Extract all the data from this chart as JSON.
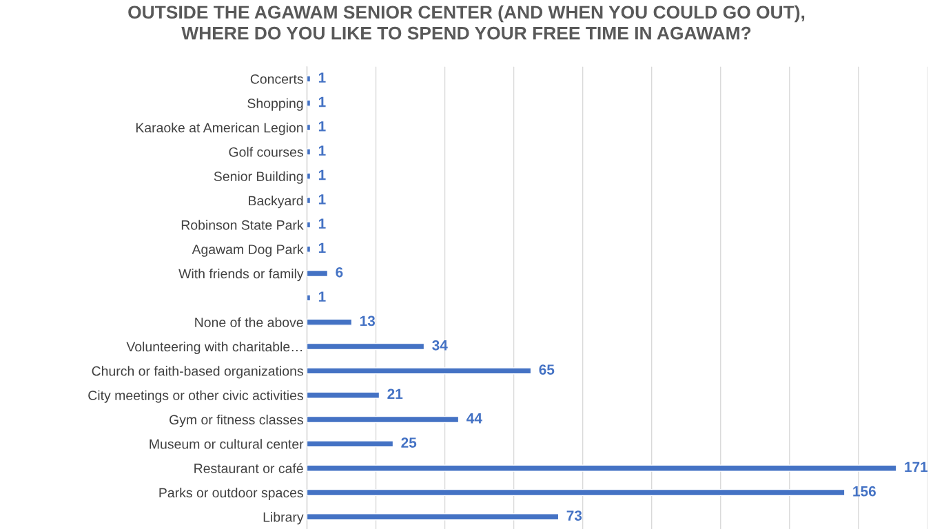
{
  "chart_data": {
    "type": "bar",
    "orientation": "horizontal",
    "title": "OUTSIDE THE AGAWAM SENIOR CENTER (AND WHEN YOU COULD GO OUT),\nWHERE DO YOU LIKE TO SPEND YOUR FREE TIME IN AGAWAM?",
    "categories": [
      "Concerts",
      "Shopping",
      "Karaoke at American Legion",
      "Golf courses",
      "Senior Building",
      "Backyard",
      "Robinson State Park",
      "Agawam Dog Park",
      "With friends or family",
      null,
      "None of the above",
      "Volunteering with charitable…",
      "Church or faith-based organizations",
      "City meetings or other civic activities",
      "Gym or fitness classes",
      "Museum or cultural center",
      "Restaurant or café",
      "Parks or outdoor spaces",
      "Library"
    ],
    "values": [
      1,
      1,
      1,
      1,
      1,
      1,
      1,
      1,
      6,
      1,
      13,
      34,
      65,
      21,
      44,
      25,
      171,
      156,
      73
    ],
    "color": "#4472c4",
    "xlim": [
      0,
      180
    ],
    "xticks": [
      {
        "value": 0,
        "label": null
      },
      {
        "value": 20,
        "label": null
      },
      {
        "value": 40,
        "label": null
      },
      {
        "value": 60,
        "label": null
      },
      {
        "value": 80,
        "label": null
      },
      {
        "value": 100,
        "label": null
      },
      {
        "value": 120,
        "label": null
      },
      {
        "value": 140,
        "label": null
      },
      {
        "value": 160,
        "label": null
      },
      {
        "value": 180,
        "label": null
      }
    ],
    "tick_labels": "y",
    "grid": "x",
    "data_labels": true
  }
}
